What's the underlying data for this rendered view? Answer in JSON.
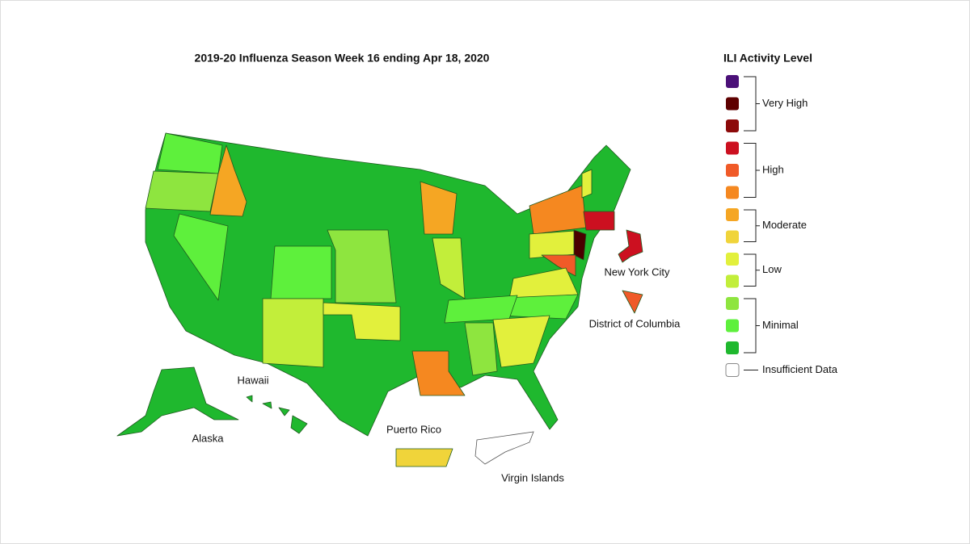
{
  "title": "2019-20 Influenza Season Week 16 ending Apr 18, 2020",
  "legend": {
    "title": "ILI Activity Level",
    "groups": [
      {
        "label": "Very High",
        "colors": [
          "#4b1078",
          "#5e0000",
          "#8c0a0a"
        ]
      },
      {
        "label": "High",
        "colors": [
          "#cc1020",
          "#f05a28",
          "#f58820"
        ]
      },
      {
        "label": "Moderate",
        "colors": [
          "#f5a623",
          "#f0d43a"
        ]
      },
      {
        "label": "Low",
        "colors": [
          "#e2f03c",
          "#c2ee3a"
        ]
      },
      {
        "label": "Minimal",
        "colors": [
          "#8ee53f",
          "#5ef03c",
          "#1fb82e"
        ]
      },
      {
        "label": "Insufficient Data",
        "colors": [
          "#ffffff"
        ]
      }
    ]
  },
  "map_labels": {
    "alaska": "Alaska",
    "hawaii": "Hawaii",
    "puerto_rico": "Puerto Rico",
    "virgin_islands": "Virgin Islands",
    "new_york_city": "New York City",
    "district_of_columbia": "District of Columbia"
  }
}
